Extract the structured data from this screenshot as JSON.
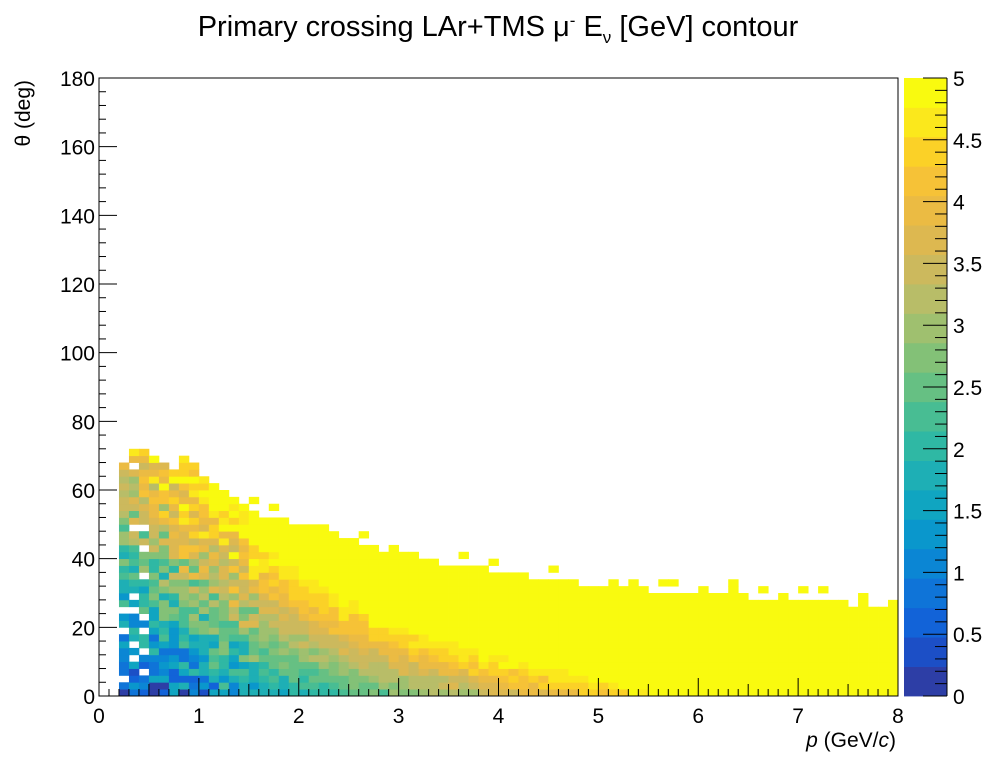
{
  "chart_data": {
    "type": "heatmap",
    "title": "Primary crossing LAr+TMS μ⁻ Eᵥ [GeV] contour",
    "title_parts": {
      "pre": "Primary crossing LAr+TMS μ",
      "sup": "-",
      "mid": " E",
      "sub": "ν",
      "post": " [GeV] contour"
    },
    "xlabel": "p (GeV/c)",
    "xlabel_parts": {
      "italic": "p",
      "pre": " (GeV/",
      "italic2": "c",
      "post": ")"
    },
    "ylabel": "θ (deg)",
    "xlim": [
      0,
      8
    ],
    "ylim": [
      0,
      180
    ],
    "zlim": [
      0,
      5
    ],
    "x_ticks": [
      "0",
      "1",
      "2",
      "3",
      "4",
      "5",
      "6",
      "7",
      "8"
    ],
    "y_ticks": [
      "0",
      "20",
      "40",
      "60",
      "80",
      "100",
      "120",
      "140",
      "160",
      "180"
    ],
    "z_ticks": [
      "0",
      "0.5",
      "1",
      "1.5",
      "2",
      "2.5",
      "3",
      "3.5",
      "4",
      "4.5",
      "5"
    ],
    "palette": [
      "#2d3ea6",
      "#1c4fc6",
      "#1263d8",
      "#0f74d8",
      "#0b86d4",
      "#0a97cc",
      "#10a5c1",
      "#1eafb5",
      "#2fb8a4",
      "#48bd93",
      "#66c083",
      "#83c177",
      "#9fc06f",
      "#b8bd68",
      "#ccb95d",
      "#ddb850",
      "#ebbb43",
      "#f6c237",
      "#fbd127",
      "#fbe81c",
      "#f9fa0f"
    ],
    "x_bin_width": 0.1,
    "y_bin_width": 2,
    "density_edge": [
      {
        "p": 0.2,
        "theta": 66
      },
      {
        "p": 0.4,
        "theta": 74
      },
      {
        "p": 0.6,
        "theta": 68
      },
      {
        "p": 1.0,
        "theta": 64
      },
      {
        "p": 1.5,
        "theta": 54
      },
      {
        "p": 2.0,
        "theta": 50
      },
      {
        "p": 2.5,
        "theta": 46
      },
      {
        "p": 3.0,
        "theta": 40
      },
      {
        "p": 4.0,
        "theta": 36
      },
      {
        "p": 5.0,
        "theta": 32
      },
      {
        "p": 6.0,
        "theta": 30
      },
      {
        "p": 7.0,
        "theta": 28
      },
      {
        "p": 8.0,
        "theta": 26
      }
    ],
    "energy_trend": [
      {
        "p": 0.5,
        "theta": 10,
        "e_nu": 1.2
      },
      {
        "p": 1.0,
        "theta": 30,
        "e_nu": 2.0
      },
      {
        "p": 2.0,
        "theta": 10,
        "e_nu": 2.8
      },
      {
        "p": 2.5,
        "theta": 30,
        "e_nu": 4.5
      },
      {
        "p": 3.0,
        "theta": 5,
        "e_nu": 3.6
      },
      {
        "p": 4.0,
        "theta": 5,
        "e_nu": 5.0
      }
    ],
    "grid": false,
    "colorbar": "right"
  }
}
